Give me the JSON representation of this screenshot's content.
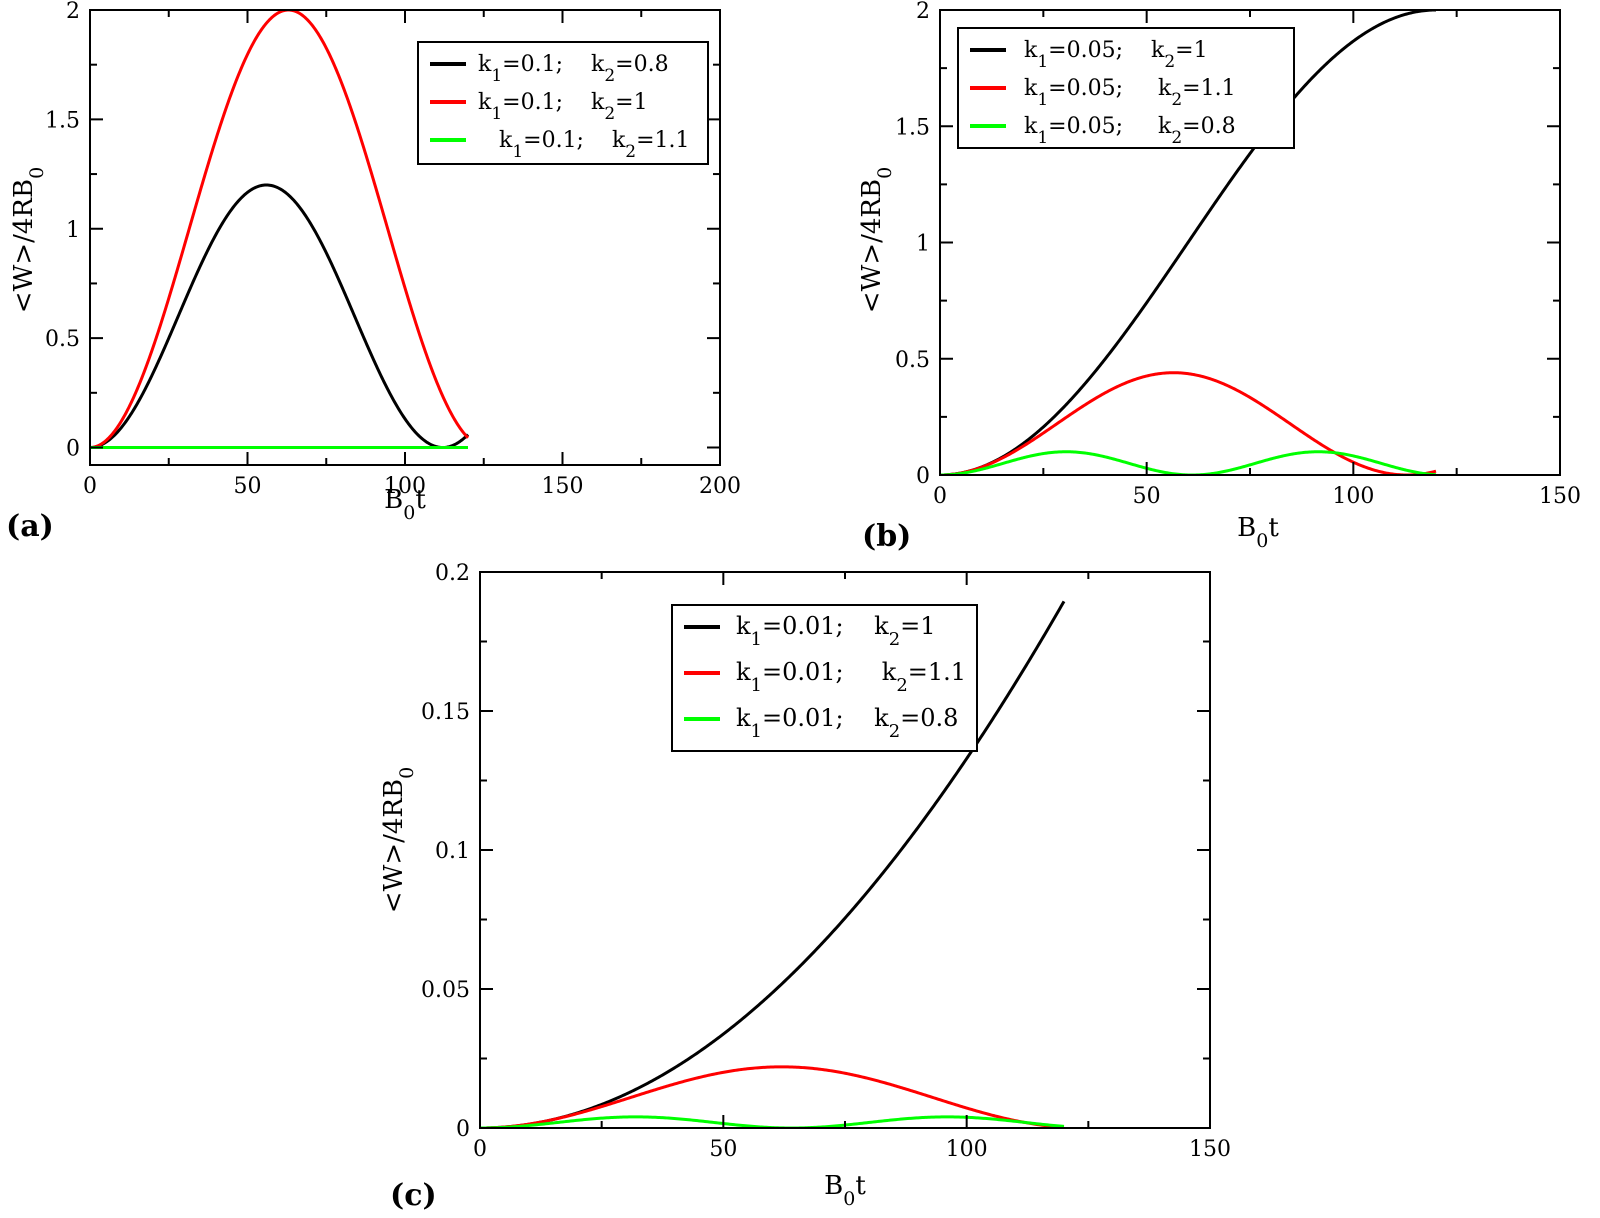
{
  "chart_data": [
    {
      "type": "line",
      "panel_label": "(a)",
      "xlabel": "B0t",
      "ylabel": "<W>/4RB0",
      "xlim": [
        0,
        200
      ],
      "ylim": [
        -0.08,
        2
      ],
      "xticks": [
        0,
        50,
        100,
        150,
        200
      ],
      "yticks": [
        0,
        0.5,
        1,
        1.5,
        2
      ],
      "xtick_labels": [
        "0",
        "50",
        "100",
        "150",
        "200"
      ],
      "ytick_labels": [
        "0",
        "0.5",
        "1",
        "1.5",
        "2"
      ],
      "legend_position": "top-right",
      "series": [
        {
          "name": "k1=0.1;    k2=0.8",
          "legend_parts": [
            "k",
            "1",
            "=0.1;    k",
            "2",
            "=0.8"
          ],
          "color": "#000000",
          "curve": "sine_squared",
          "amplitude": 1.2,
          "period": 112,
          "x_max": 120
        },
        {
          "name": "k1=0.1;    k2=1",
          "legend_parts": [
            "k",
            "1",
            "=0.1;    k",
            "2",
            "=1"
          ],
          "color": "#ff0000",
          "curve": "sine_squared",
          "amplitude": 2.0,
          "period": 126,
          "x_max": 120
        },
        {
          "name": "k1=0.1;    k2=1.1",
          "legend_parts": [
            "   k",
            "1",
            "=0.1;    k",
            "2",
            "=1.1"
          ],
          "color": "#00ff00",
          "curve": "sine_squared",
          "amplitude": 0.0,
          "period": 120,
          "x_max": 120
        }
      ]
    },
    {
      "type": "line",
      "panel_label": "(b)",
      "xlabel": "B0t",
      "ylabel": "<W>/4RB0",
      "xlim": [
        0,
        150
      ],
      "ylim": [
        0,
        2
      ],
      "xticks": [
        0,
        50,
        100,
        150
      ],
      "yticks": [
        0,
        0.5,
        1,
        1.5,
        2
      ],
      "xtick_labels": [
        "0",
        "50",
        "100",
        "150"
      ],
      "ytick_labels": [
        "0",
        "0.5",
        "1",
        "1.5",
        "2"
      ],
      "legend_position": "top-left",
      "series": [
        {
          "name": "k1=0.05;    k2=1",
          "legend_parts": [
            "k",
            "1",
            "=0.05;    k",
            "2",
            "=1"
          ],
          "color": "#000000",
          "curve": "sine_squared",
          "amplitude": 2.0,
          "period": 240,
          "x_max": 120
        },
        {
          "name": "k1=0.05;     k2=1.1",
          "legend_parts": [
            "k",
            "1",
            "=0.05;     k",
            "2",
            "=1.1"
          ],
          "color": "#ff0000",
          "curve": "sine_squared",
          "amplitude": 0.44,
          "period": 113,
          "x_max": 120
        },
        {
          "name": "k1=0.05;     k2=0.8",
          "legend_parts": [
            "k",
            "1",
            "=0.05;     k",
            "2",
            "=0.8"
          ],
          "color": "#00ff00",
          "curve": "sine_squared",
          "amplitude": 0.1,
          "period": 61,
          "x_max": 120
        }
      ]
    },
    {
      "type": "line",
      "panel_label": "(c)",
      "xlabel": "B0t",
      "ylabel": "<W>/4RB0",
      "xlim": [
        0,
        150
      ],
      "ylim": [
        0,
        0.2
      ],
      "xticks": [
        0,
        50,
        100,
        150
      ],
      "yticks": [
        0,
        0.05,
        0.1,
        0.15,
        0.2
      ],
      "xtick_labels": [
        "0",
        "50",
        "100",
        "150"
      ],
      "ytick_labels": [
        "0",
        "0.05",
        "0.1",
        "0.15",
        "0.2"
      ],
      "legend_position": "top-center",
      "series": [
        {
          "name": "k1=0.01;    k2=1",
          "legend_parts": [
            "k",
            "1",
            "=0.01;    k",
            "2",
            "=1"
          ],
          "color": "#000000",
          "curve": "sine_squared",
          "amplitude": 2.0,
          "period": 1205,
          "x_max": 120
        },
        {
          "name": "k1=0.01;     k2=1.1",
          "legend_parts": [
            "k",
            "1",
            "=0.01;     k",
            "2",
            "=1.1"
          ],
          "color": "#ff0000",
          "curve": "sine_squared",
          "amplitude": 0.022,
          "period": 124,
          "x_max": 120
        },
        {
          "name": "k1=0.01;    k2=0.8",
          "legend_parts": [
            "k",
            "1",
            "=0.01;    k",
            "2",
            "=0.8"
          ],
          "color": "#00ff00",
          "curve": "sine_squared",
          "amplitude": 0.004,
          "period": 64,
          "x_max": 120
        }
      ]
    }
  ]
}
